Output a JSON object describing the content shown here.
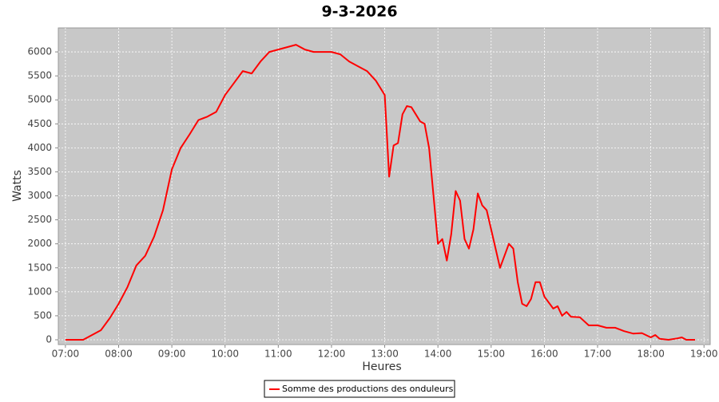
{
  "chart_data": {
    "type": "line",
    "title": "9-3-2026",
    "x_label": "Heures",
    "y_label": "Watts",
    "x": [
      "07:00",
      "07:20",
      "07:30",
      "07:40",
      "07:50",
      "08:00",
      "08:10",
      "08:20",
      "08:30",
      "08:40",
      "08:50",
      "09:00",
      "09:10",
      "09:20",
      "09:30",
      "09:40",
      "09:50",
      "10:00",
      "10:10",
      "10:20",
      "10:30",
      "10:40",
      "10:50",
      "11:00",
      "11:10",
      "11:20",
      "11:30",
      "11:40",
      "11:50",
      "12:00",
      "12:10",
      "12:20",
      "12:30",
      "12:40",
      "12:50",
      "13:00",
      "13:05",
      "13:10",
      "13:15",
      "13:20",
      "13:25",
      "13:30",
      "13:40",
      "13:45",
      "13:50",
      "14:00",
      "14:05",
      "14:10",
      "14:15",
      "14:20",
      "14:25",
      "14:30",
      "14:35",
      "14:40",
      "14:45",
      "14:50",
      "14:55",
      "15:00",
      "15:10",
      "15:20",
      "15:25",
      "15:30",
      "15:35",
      "15:40",
      "15:45",
      "15:50",
      "15:55",
      "16:00",
      "16:10",
      "16:15",
      "16:20",
      "16:25",
      "16:30",
      "16:40",
      "16:50",
      "17:00",
      "17:10",
      "17:20",
      "17:30",
      "17:40",
      "17:50",
      "18:00",
      "18:05",
      "18:10",
      "18:20",
      "18:30",
      "18:35",
      "18:40",
      "18:50"
    ],
    "series": [
      {
        "name": "Somme des productions des onduleurs",
        "color": "#ff0000",
        "values": [
          0,
          0,
          100,
          200,
          450,
          750,
          1100,
          1550,
          1750,
          2150,
          2700,
          3550,
          4000,
          4280,
          4580,
          4650,
          4750,
          5100,
          5350,
          5600,
          5550,
          5800,
          6000,
          6050,
          6100,
          6150,
          6050,
          6000,
          6000,
          6000,
          5950,
          5800,
          5700,
          5600,
          5400,
          5100,
          3400,
          4050,
          4100,
          4700,
          4870,
          4850,
          4550,
          4500,
          4000,
          2000,
          2100,
          1650,
          2200,
          3100,
          2900,
          2100,
          1900,
          2300,
          3050,
          2800,
          2700,
          2300,
          1500,
          2000,
          1900,
          1200,
          750,
          700,
          850,
          1200,
          1200,
          900,
          650,
          700,
          500,
          580,
          480,
          470,
          300,
          300,
          250,
          250,
          180,
          130,
          140,
          50,
          100,
          20,
          0,
          30,
          50,
          0,
          0
        ]
      }
    ],
    "xlim": [
      "06:52",
      "19:07"
    ],
    "xticks": [
      "07:00",
      "08:00",
      "09:00",
      "10:00",
      "11:00",
      "12:00",
      "13:00",
      "14:00",
      "15:00",
      "16:00",
      "17:00",
      "18:00",
      "19:00"
    ],
    "ylim": [
      -100,
      6500
    ],
    "yticks": [
      0,
      500,
      1000,
      1500,
      2000,
      2500,
      3000,
      3500,
      4000,
      4500,
      5000,
      5500,
      6000
    ],
    "grid": true,
    "legend": "bottom"
  }
}
